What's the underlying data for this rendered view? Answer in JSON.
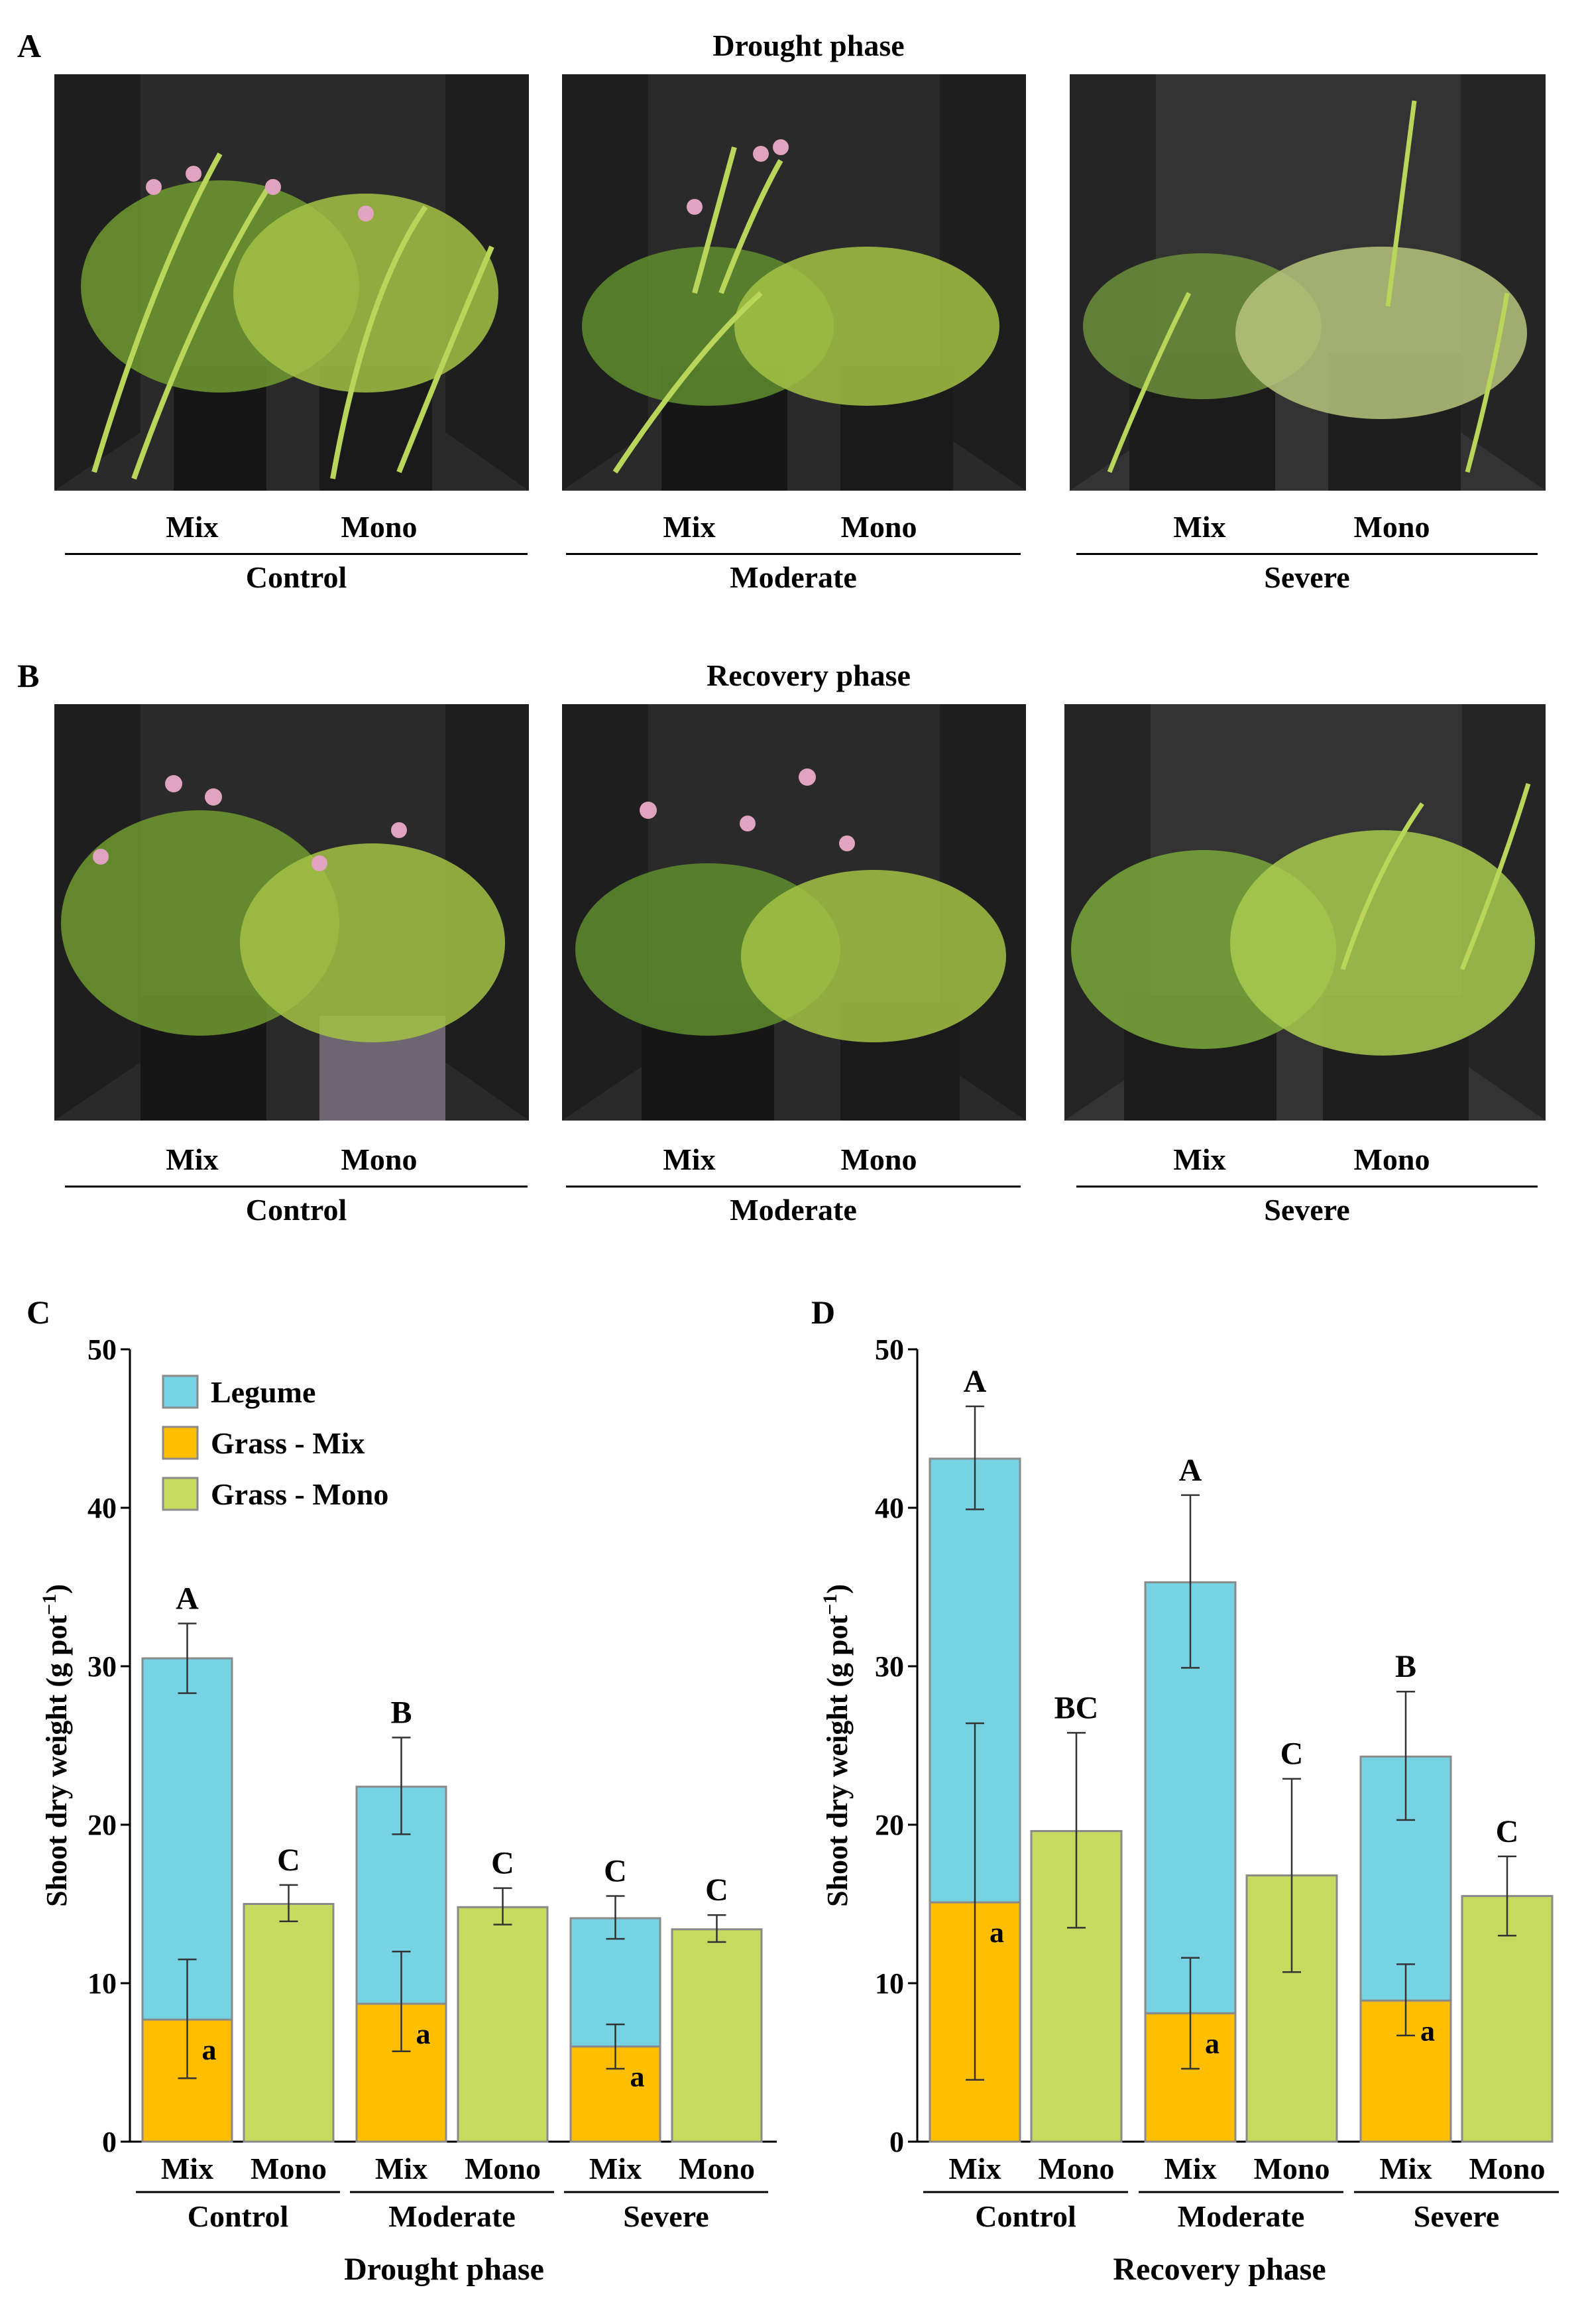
{
  "panels": {
    "a": {
      "label": "A",
      "title": "Drought phase",
      "groups": [
        {
          "mix": "Mix",
          "mono": "Mono",
          "treatment": "Control"
        },
        {
          "mix": "Mix",
          "mono": "Mono",
          "treatment": "Moderate"
        },
        {
          "mix": "Mix",
          "mono": "Mono",
          "treatment": "Severe"
        }
      ]
    },
    "b": {
      "label": "B",
      "title": "Recovery phase",
      "groups": [
        {
          "mix": "Mix",
          "mono": "Mono",
          "treatment": "Control"
        },
        {
          "mix": "Mix",
          "mono": "Mono",
          "treatment": "Moderate"
        },
        {
          "mix": "Mix",
          "mono": "Mono",
          "treatment": "Severe"
        }
      ]
    }
  },
  "colors": {
    "legume": "#76D3E3",
    "grass_mix": "#FFBE00",
    "grass_mono": "#C5DA5E",
    "bar_outline": "#8a8a8a"
  },
  "chart_data": [
    {
      "panel": "C",
      "type": "bar",
      "stacked": true,
      "title": "Drought phase",
      "ylabel": "Shoot dry weight (g pot",
      "ylabel_sup": "−1",
      "ylabel_close": ")",
      "ylim": [
        0,
        50
      ],
      "yticks": [
        "0",
        "10",
        "20",
        "30",
        "40",
        "50"
      ],
      "legend": [
        "Legume",
        "Grass - Mix",
        "Grass - Mono"
      ],
      "treatments": [
        "Control",
        "Moderate",
        "Severe"
      ],
      "bars": [
        {
          "treatment": "Control",
          "label": "Mix",
          "kind": "mix",
          "grass": 7.7,
          "grass_lo": 4.0,
          "grass_hi": 11.5,
          "grass_letter": "a",
          "total": 30.5,
          "total_lo": 28.3,
          "total_hi": 32.7,
          "letter": "A"
        },
        {
          "treatment": "Control",
          "label": "Mono",
          "kind": "mono",
          "total": 15.0,
          "total_lo": 13.9,
          "total_hi": 16.2,
          "letter": "C"
        },
        {
          "treatment": "Moderate",
          "label": "Mix",
          "kind": "mix",
          "grass": 8.7,
          "grass_lo": 5.7,
          "grass_hi": 12.0,
          "grass_letter": "a",
          "total": 22.4,
          "total_lo": 19.4,
          "total_hi": 25.5,
          "letter": "B"
        },
        {
          "treatment": "Moderate",
          "label": "Mono",
          "kind": "mono",
          "total": 14.8,
          "total_lo": 13.7,
          "total_hi": 16.0,
          "letter": "C"
        },
        {
          "treatment": "Severe",
          "label": "Mix",
          "kind": "mix",
          "grass": 6.0,
          "grass_lo": 4.6,
          "grass_hi": 7.4,
          "grass_letter": "a",
          "total": 14.1,
          "total_lo": 12.8,
          "total_hi": 15.5,
          "letter": "C"
        },
        {
          "treatment": "Severe",
          "label": "Mono",
          "kind": "mono",
          "total": 13.4,
          "total_lo": 12.6,
          "total_hi": 14.3,
          "letter": "C"
        }
      ]
    },
    {
      "panel": "D",
      "type": "bar",
      "stacked": true,
      "title": "Recovery phase",
      "ylabel": "Shoot dry weight (g pot",
      "ylabel_sup": "−1",
      "ylabel_close": ")",
      "ylim": [
        0,
        50
      ],
      "yticks": [
        "0",
        "10",
        "20",
        "30",
        "40",
        "50"
      ],
      "legend": [],
      "treatments": [
        "Control",
        "Moderate",
        "Severe"
      ],
      "bars": [
        {
          "treatment": "Control",
          "label": "Mix",
          "kind": "mix",
          "grass": 15.1,
          "grass_lo": 3.9,
          "grass_hi": 26.4,
          "grass_letter": "a",
          "total": 43.1,
          "total_lo": 39.9,
          "total_hi": 46.4,
          "letter": "A"
        },
        {
          "treatment": "Control",
          "label": "Mono",
          "kind": "mono",
          "total": 19.6,
          "total_lo": 13.5,
          "total_hi": 25.8,
          "letter": "BC"
        },
        {
          "treatment": "Moderate",
          "label": "Mix",
          "kind": "mix",
          "grass": 8.1,
          "grass_lo": 4.6,
          "grass_hi": 11.6,
          "grass_letter": "a",
          "total": 35.3,
          "total_lo": 29.9,
          "total_hi": 40.8,
          "letter": "A"
        },
        {
          "treatment": "Moderate",
          "label": "Mono",
          "kind": "mono",
          "total": 16.8,
          "total_lo": 10.7,
          "total_hi": 22.9,
          "letter": "C"
        },
        {
          "treatment": "Severe",
          "label": "Mix",
          "kind": "mix",
          "grass": 8.9,
          "grass_lo": 6.7,
          "grass_hi": 11.2,
          "grass_letter": "a",
          "total": 24.3,
          "total_lo": 20.3,
          "total_hi": 28.4,
          "letter": "B"
        },
        {
          "treatment": "Severe",
          "label": "Mono",
          "kind": "mono",
          "total": 15.5,
          "total_lo": 13.0,
          "total_hi": 18.0,
          "letter": "C"
        }
      ]
    }
  ]
}
